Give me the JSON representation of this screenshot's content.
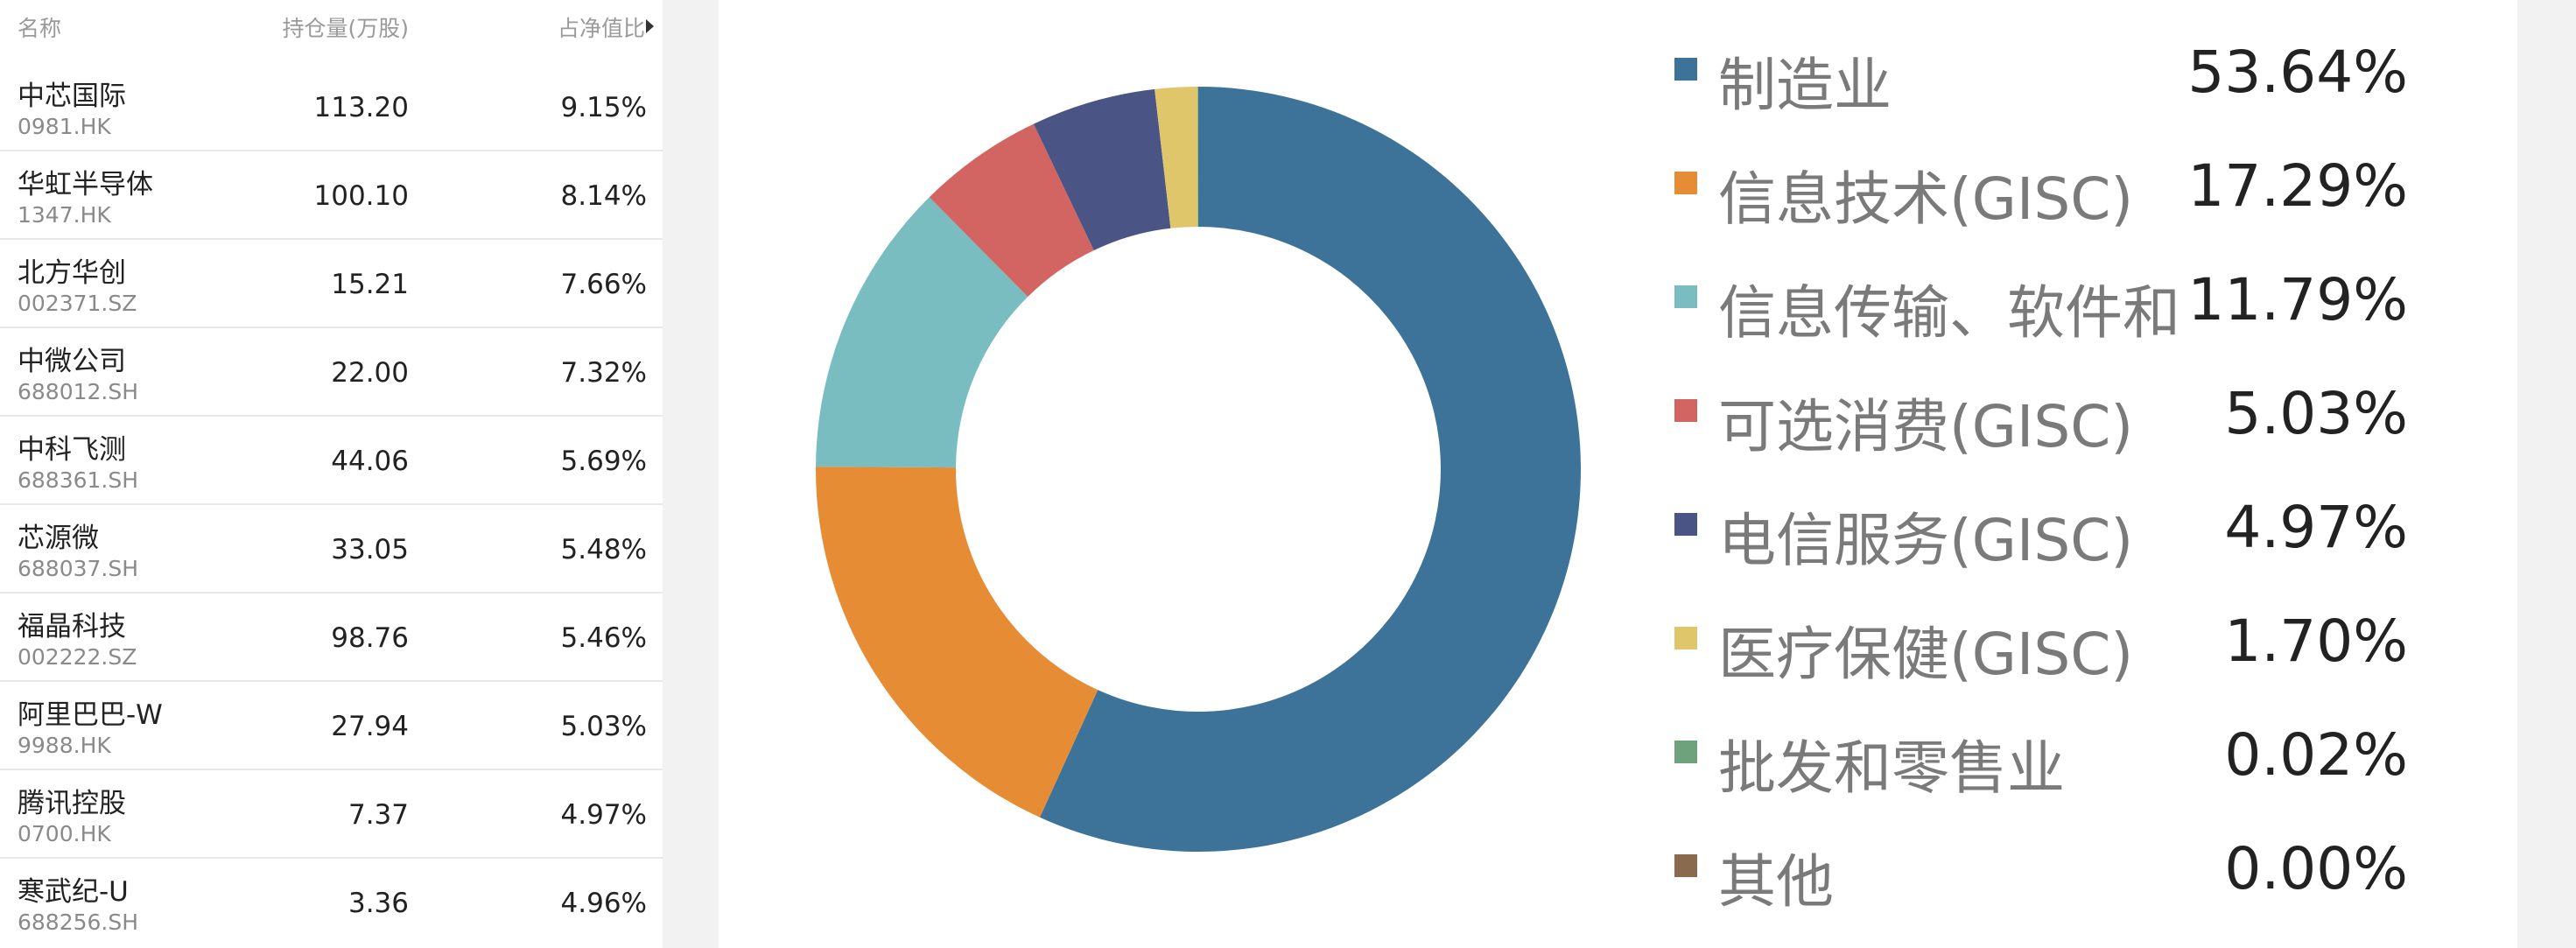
{
  "table": {
    "headers": {
      "name": "名称",
      "holdings": "持仓量(万股)",
      "net_ratio": "占净值比"
    },
    "rows": [
      {
        "name": "中芯国际",
        "code": "0981.HK",
        "holdings": "113.20",
        "ratio": "9.15%"
      },
      {
        "name": "华虹半导体",
        "code": "1347.HK",
        "holdings": "100.10",
        "ratio": "8.14%"
      },
      {
        "name": "北方华创",
        "code": "002371.SZ",
        "holdings": "15.21",
        "ratio": "7.66%"
      },
      {
        "name": "中微公司",
        "code": "688012.SH",
        "holdings": "22.00",
        "ratio": "7.32%"
      },
      {
        "name": "中科飞测",
        "code": "688361.SH",
        "holdings": "44.06",
        "ratio": "5.69%"
      },
      {
        "name": "芯源微",
        "code": "688037.SH",
        "holdings": "33.05",
        "ratio": "5.48%"
      },
      {
        "name": "福晶科技",
        "code": "002222.SZ",
        "holdings": "98.76",
        "ratio": "5.46%"
      },
      {
        "name": "阿里巴巴-W",
        "code": "9988.HK",
        "holdings": "27.94",
        "ratio": "5.03%"
      },
      {
        "name": "腾讯控股",
        "code": "0700.HK",
        "holdings": "7.37",
        "ratio": "4.97%"
      },
      {
        "name": "寒武纪-U",
        "code": "688256.SH",
        "holdings": "3.36",
        "ratio": "4.96%"
      }
    ]
  },
  "chart_data": {
    "type": "pie",
    "donut": true,
    "legend_position": "right",
    "categories": [
      "制造业",
      "信息技术(GISC)",
      "信息传输、软件和",
      "可选消费(GISC)",
      "电信服务(GISC)",
      "医疗保健(GISC)",
      "批发和零售业",
      "其他"
    ],
    "values": [
      53.64,
      17.29,
      11.79,
      5.03,
      4.97,
      1.7,
      0.02,
      0.0
    ],
    "labels": [
      "53.64%",
      "17.29%",
      "11.79%",
      "5.03%",
      "4.97%",
      "1.70%",
      "0.02%",
      "0.00%"
    ],
    "colors": [
      "#3d7399",
      "#e68c35",
      "#79bdc0",
      "#d26562",
      "#4b5585",
      "#e0c66a",
      "#6ea27c",
      "#8a6a4f"
    ]
  }
}
